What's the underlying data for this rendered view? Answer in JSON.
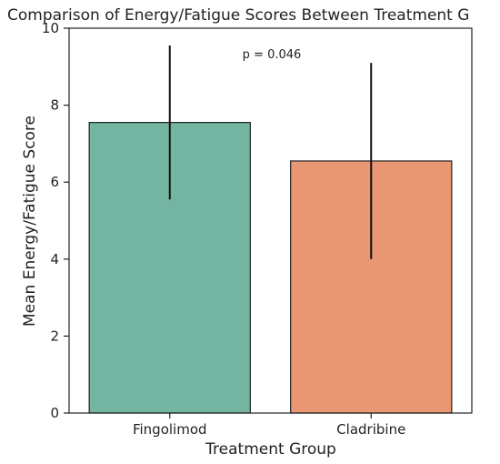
{
  "chart_data": {
    "type": "bar",
    "title": "Comparison of Energy/Fatigue Scores Between Treatment G",
    "xlabel": "Treatment Group",
    "ylabel": "Mean Energy/Fatigue Score",
    "categories": [
      "Fingolimod",
      "Cladribine"
    ],
    "values": [
      7.55,
      6.55
    ],
    "error_low": [
      5.55,
      4.0
    ],
    "error_high": [
      9.55,
      9.1
    ],
    "ylim": [
      0,
      10
    ],
    "yticks": [
      0,
      2,
      4,
      6,
      8,
      10
    ],
    "colors": [
      "#73b5a0",
      "#e99774"
    ],
    "edge_color": "#222222",
    "annotation": "p = 0.046",
    "grid": false,
    "legend": "none"
  }
}
